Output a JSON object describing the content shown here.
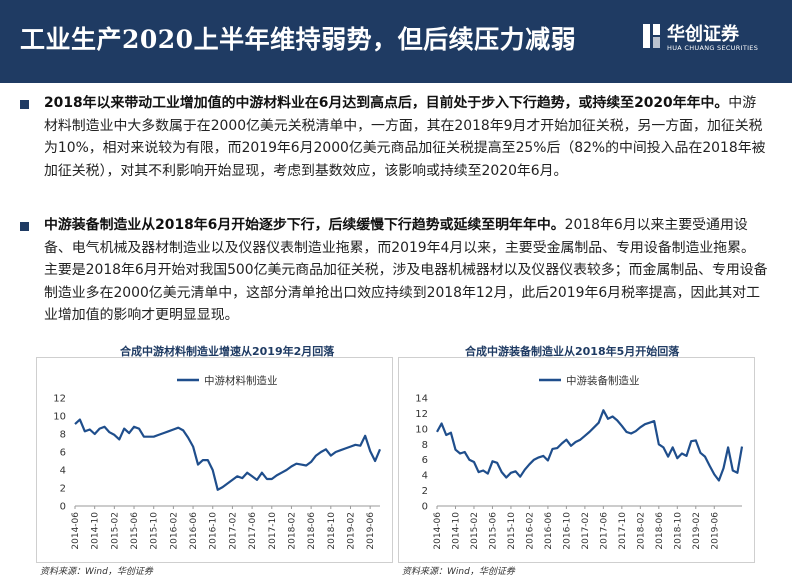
{
  "header": {
    "title": "工业生产2020上半年维持弱势，但后续压力减弱",
    "logo_cn": "华创证券",
    "logo_en": "HUA CHUANG SECURITIES"
  },
  "paragraphs": [
    {
      "bold": "2018年以来带动工业增加值的中游材料业在6月达到高点后，目前处于步入下行趋势，或持续至2020年年中。",
      "normal": "中游材料制造业中大多数属于在2000亿美元关税清单中，一方面，其在2018年9月才开始加征关税，另一方面，加征关税为10%，相对来说较为有限，而2019年6月2000亿美元商品加征关税提高至25%后（82%的中间投入品在2018年被加征关税），对其不利影响开始显现，考虑到基数效应，该影响或持续至2020年6月。"
    },
    {
      "bold": "中游装备制造业从2018年6月开始逐步下行，后续缓慢下行趋势或延续至明年年中。",
      "normal": "2018年6月以来主要受通用设备、电气机械及器材制造业以及仪器仪表制造业拖累，而2019年4月以来，主要受金属制品、专用设备制造业拖累。主要是2018年6月开始对我国500亿美元商品加征关税，涉及电器机械器材以及仪器仪表较多；而金属制品、专用设备制造业多在2000亿美元清单中，这部分清单抢出口效应持续到2018年12月，此后2019年6月税率提高，因此其对工业增加值的影响才更明显显现。"
    }
  ],
  "chart_data": [
    {
      "type": "line",
      "title": "合成中游材料制造业增速从2019年2月回落",
      "legend": "top-left",
      "grid": false,
      "color": "#1f4e8c",
      "ylim": [
        0,
        12
      ],
      "yticks": [
        "0",
        "2",
        "4",
        "6",
        "8",
        "10",
        "12"
      ],
      "xticks": [
        "2014-06",
        "2014-10",
        "2015-02",
        "2015-06",
        "2015-10",
        "2016-02",
        "2016-06",
        "2016-10",
        "2017-02",
        "2017-06",
        "2017-10",
        "2018-02",
        "2018-06",
        "2018-10",
        "2019-02",
        "2019-06"
      ],
      "series": [
        {
          "name": "中游材料制造业",
          "values": [
            9.1,
            9.6,
            8.3,
            8.5,
            8.0,
            8.6,
            8.8,
            8.2,
            7.9,
            7.4,
            8.6,
            8.1,
            8.8,
            8.6,
            7.7,
            7.7,
            7.7,
            7.9,
            8.1,
            8.3,
            8.5,
            8.7,
            8.4,
            7.6,
            6.6,
            4.6,
            5.1,
            5.1,
            4.0,
            1.8,
            2.1,
            2.5,
            2.9,
            3.3,
            3.1,
            3.7,
            3.3,
            2.9,
            3.7,
            3.0,
            3.0,
            3.4,
            3.7,
            4.0,
            4.4,
            4.7,
            4.6,
            4.5,
            4.9,
            5.6,
            6.0,
            6.3,
            5.6,
            6.0,
            6.2,
            6.4,
            6.6,
            6.8,
            6.7,
            7.8,
            6.1,
            5.0,
            6.3
          ]
        }
      ],
      "source": "资料来源：Wind，华创证券"
    },
    {
      "type": "line",
      "title": "合成中游装备制造业从2018年5月开始回落",
      "legend": "top-left",
      "grid": false,
      "color": "#1f4e8c",
      "ylim": [
        0,
        14
      ],
      "yticks": [
        "0",
        "2",
        "4",
        "6",
        "8",
        "10",
        "12",
        "14"
      ],
      "xticks": [
        "2014-06",
        "2014-10",
        "2015-02",
        "2015-06",
        "2015-10",
        "2016-02",
        "2016-06",
        "2016-10",
        "2017-02",
        "2017-06",
        "2017-10",
        "2018-02",
        "2018-06",
        "2018-10",
        "2019-02",
        "2019-06"
      ],
      "series": [
        {
          "name": "中游装备制造业",
          "values": [
            9.6,
            10.7,
            9.2,
            9.5,
            7.3,
            6.8,
            7.0,
            6.0,
            5.7,
            4.4,
            4.6,
            4.2,
            5.8,
            5.6,
            4.4,
            3.7,
            4.3,
            4.5,
            3.8,
            4.7,
            5.4,
            6.0,
            6.3,
            6.5,
            5.9,
            7.4,
            7.5,
            8.1,
            8.6,
            7.8,
            8.3,
            8.6,
            9.1,
            9.6,
            10.2,
            10.8,
            12.4,
            11.3,
            11.6,
            11.1,
            10.4,
            9.6,
            9.4,
            9.7,
            10.2,
            10.6,
            10.8,
            11.0,
            8.0,
            7.6,
            6.4,
            7.6,
            6.2,
            6.8,
            6.5,
            8.4,
            8.5,
            6.9,
            6.4,
            5.2,
            4.1,
            3.3,
            4.9,
            7.6,
            4.6,
            4.3,
            7.7
          ]
        }
      ],
      "source": "资料来源：Wind，华创证券"
    }
  ]
}
